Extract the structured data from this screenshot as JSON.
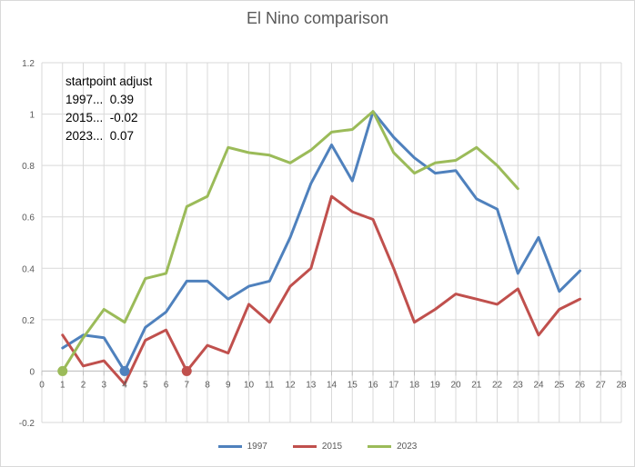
{
  "chart_data": {
    "type": "line",
    "title": "El Nino comparison",
    "xlabel": "",
    "ylabel": "",
    "xlim": [
      0,
      28
    ],
    "ylim": [
      -0.2,
      1.2
    ],
    "x_ticks": [
      0,
      1,
      2,
      3,
      4,
      5,
      6,
      7,
      8,
      9,
      10,
      11,
      12,
      13,
      14,
      15,
      16,
      17,
      18,
      19,
      20,
      21,
      22,
      23,
      24,
      25,
      26,
      27,
      28
    ],
    "y_ticks": [
      -0.2,
      0,
      0.2,
      0.4,
      0.6,
      0.8,
      1,
      1.2
    ],
    "y_tick_labels": [
      "-0.2",
      "0",
      "0.2",
      "0.4",
      "0.6",
      "0.8",
      "1",
      "1.2"
    ],
    "grid": true,
    "legend_position": "bottom",
    "series": [
      {
        "name": "1997",
        "color": "#4f81bd",
        "x": [
          1,
          2,
          3,
          4,
          5,
          6,
          7,
          8,
          9,
          10,
          11,
          12,
          13,
          14,
          15,
          16,
          17,
          18,
          19,
          20,
          21,
          22,
          23,
          24,
          25,
          26
        ],
        "values": [
          0.09,
          0.14,
          0.13,
          0.0,
          0.17,
          0.23,
          0.35,
          0.35,
          0.28,
          0.33,
          0.35,
          0.52,
          0.73,
          0.88,
          0.74,
          1.01,
          0.91,
          0.83,
          0.77,
          0.78,
          0.67,
          0.63,
          0.38,
          0.52,
          0.31,
          0.39
        ],
        "marker": {
          "x": 4,
          "y": 0
        }
      },
      {
        "name": "2015",
        "color": "#c0504d",
        "x": [
          1,
          2,
          3,
          4,
          5,
          6,
          7,
          8,
          9,
          10,
          11,
          12,
          13,
          14,
          15,
          16,
          17,
          18,
          19,
          20,
          21,
          22,
          23,
          24,
          25,
          26
        ],
        "values": [
          0.14,
          0.02,
          0.04,
          -0.05,
          0.12,
          0.16,
          0.0,
          0.1,
          0.07,
          0.26,
          0.19,
          0.33,
          0.4,
          0.68,
          0.62,
          0.59,
          0.4,
          0.19,
          0.24,
          0.3,
          0.28,
          0.26,
          0.32,
          0.14,
          0.24,
          0.28
        ],
        "marker": {
          "x": 7,
          "y": 0
        }
      },
      {
        "name": "2023",
        "color": "#9bbb59",
        "x": [
          1,
          2,
          3,
          4,
          5,
          6,
          7,
          8,
          9,
          10,
          11,
          12,
          13,
          14,
          15,
          16,
          17,
          18,
          19,
          20,
          21,
          22,
          23
        ],
        "values": [
          0.0,
          0.13,
          0.24,
          0.19,
          0.36,
          0.38,
          0.64,
          0.68,
          0.87,
          0.85,
          0.84,
          0.81,
          0.86,
          0.93,
          0.94,
          1.01,
          0.85,
          0.77,
          0.81,
          0.82,
          0.87,
          0.8,
          0.71
        ],
        "marker": {
          "x": 1,
          "y": 0
        }
      }
    ],
    "annotations": {
      "heading": "startpoint adjust",
      "lines": [
        "1997...  0.39",
        "2015...  -0.02",
        "2023...  0.07"
      ]
    }
  }
}
